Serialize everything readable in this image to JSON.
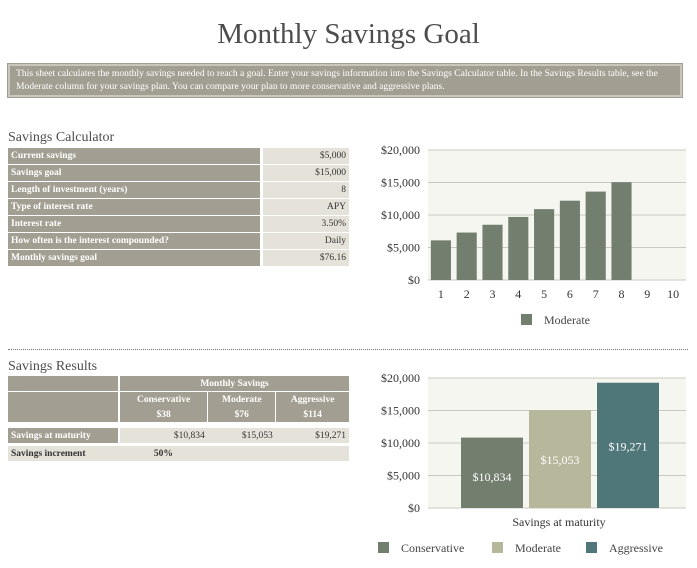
{
  "title": "Monthly Savings Goal",
  "description": "This sheet calculates the monthly savings needed to reach a goal.  Enter your savings information into the Savings Calculator table.  In the Savings Results table, see the Moderate column for your savings plan. You can compare your plan to more conservative and aggressive plans.",
  "calculator": {
    "title": "Savings Calculator",
    "rows": [
      {
        "label": "Current savings",
        "value": "$5,000"
      },
      {
        "label": "Savings goal",
        "value": "$15,000"
      },
      {
        "label": "Length of investment (years)",
        "value": "8"
      },
      {
        "label": "Type of interest rate",
        "value": "APY"
      },
      {
        "label": "Interest rate",
        "value": "3.50%"
      },
      {
        "label": "How often is the interest compounded?",
        "value": "Daily"
      },
      {
        "label": "Monthly savings goal",
        "value": "$76.16"
      }
    ]
  },
  "results": {
    "title": "Savings Results",
    "group_header": "Monthly Savings",
    "columns": [
      "Conservative",
      "Moderate",
      "Aggressive"
    ],
    "amounts": [
      "$38",
      "$76",
      "$114"
    ],
    "maturity_label": "Savings at maturity",
    "maturity_values": [
      "$10,834",
      "$15,053",
      "$19,271"
    ],
    "increment_label": "Savings increment",
    "increment_value": "50%"
  },
  "colors": {
    "moderate_line": "#737f6e",
    "conservative": "#737f6e",
    "moderate": "#b7b79c",
    "aggressive": "#4f7679",
    "plot_bg": "#f5f6f0"
  },
  "chart_data": [
    {
      "type": "bar",
      "categories": [
        "1",
        "2",
        "3",
        "4",
        "5",
        "6",
        "7",
        "8",
        "9",
        "10"
      ],
      "series": [
        {
          "name": "Moderate",
          "values": [
            6100,
            7300,
            8500,
            9700,
            10900,
            12200,
            13600,
            15050,
            null,
            null
          ]
        }
      ],
      "ylim": [
        0,
        20000
      ],
      "yticks": [
        "$0",
        "$5,000",
        "$10,000",
        "$15,000",
        "$20,000"
      ],
      "legend": "bottom"
    },
    {
      "type": "bar",
      "categories": [
        "Savings at maturity"
      ],
      "series": [
        {
          "name": "Conservative",
          "values": [
            10834
          ],
          "label": "$10,834"
        },
        {
          "name": "Moderate",
          "values": [
            15053
          ],
          "label": "$15,053"
        },
        {
          "name": "Aggressive",
          "values": [
            19271
          ],
          "label": "$19,271"
        }
      ],
      "xlabel": "Savings at maturity",
      "ylim": [
        0,
        20000
      ],
      "yticks": [
        "$0",
        "$5,000",
        "$10,000",
        "$15,000",
        "$20,000"
      ],
      "legend": "bottom"
    }
  ]
}
